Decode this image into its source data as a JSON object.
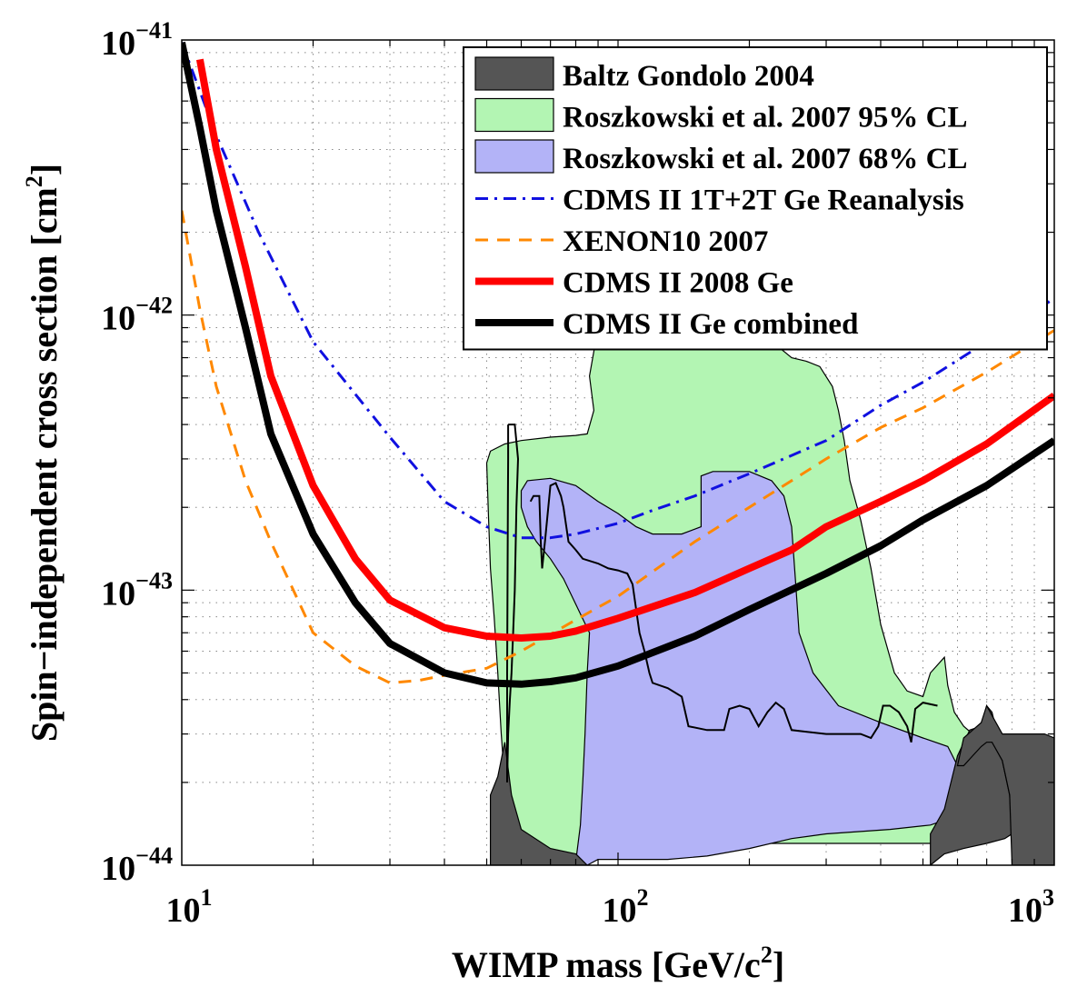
{
  "chart_data": {
    "type": "line",
    "xlabel": "WIMP mass [GeV/c",
    "xlabel_sup": "2",
    "xlabel_end": "]",
    "ylabel": "Spin−independent cross section [cm",
    "ylabel_sup": "2",
    "ylabel_end": "]",
    "xscale": "log",
    "yscale": "log",
    "xlim": [
      10,
      1000
    ],
    "ylim": [
      1e-44,
      1e-41
    ],
    "grid": true,
    "legend_position": "top-right",
    "xticks": [
      {
        "value": 10,
        "base": "10",
        "exp": "1"
      },
      {
        "value": 100,
        "base": "10",
        "exp": "2"
      },
      {
        "value": 1000,
        "base": "10",
        "exp": "3"
      }
    ],
    "yticks": [
      {
        "value": 1e-44,
        "base": "10",
        "exp": "−44"
      },
      {
        "value": 1e-43,
        "base": "10",
        "exp": "−43"
      },
      {
        "value": 1e-42,
        "base": "10",
        "exp": "−42"
      },
      {
        "value": 1e-41,
        "base": "10",
        "exp": "−41"
      }
    ],
    "regions": [
      {
        "name": "Roszkowski et al. 2007 95% CL",
        "color": "#b3f5b3",
        "points": [
          [
            50,
            2.9e-43
          ],
          [
            51,
            3.2e-43
          ],
          [
            55,
            3.4e-43
          ],
          [
            60,
            3.5e-43
          ],
          [
            70,
            3.6e-43
          ],
          [
            80,
            3.65e-43
          ],
          [
            85,
            3.7e-43
          ],
          [
            88,
            4.5e-43
          ],
          [
            86,
            6e-43
          ],
          [
            90,
            9e-43
          ],
          [
            95,
            1.05e-42
          ],
          [
            110,
            1.08e-42
          ],
          [
            120,
            1.05e-42
          ],
          [
            140,
            9.5e-43
          ],
          [
            170,
            8.5e-43
          ],
          [
            200,
            8.2e-43
          ],
          [
            230,
            7.8e-43
          ],
          [
            250,
            7e-43
          ],
          [
            270,
            6.8e-43
          ],
          [
            290,
            6.5e-43
          ],
          [
            310,
            5.5e-43
          ],
          [
            320,
            4.5e-43
          ],
          [
            330,
            3.5e-43
          ],
          [
            340,
            2.5e-43
          ],
          [
            360,
            1.8e-43
          ],
          [
            380,
            1.2e-43
          ],
          [
            400,
            7.5e-44
          ],
          [
            430,
            5e-44
          ],
          [
            460,
            4.3e-44
          ],
          [
            500,
            4.1e-44
          ],
          [
            520,
            5e-44
          ],
          [
            560,
            5.7e-44
          ],
          [
            570,
            4.5e-44
          ],
          [
            590,
            3.6e-44
          ],
          [
            620,
            3.2e-44
          ],
          [
            650,
            3e-44
          ],
          [
            700,
            2.8e-44
          ],
          [
            760,
            2.5e-44
          ],
          [
            780,
            2.1e-44
          ],
          [
            790,
            1.7e-44
          ],
          [
            760,
            1.4e-44
          ],
          [
            700,
            1.25e-44
          ],
          [
            600,
            1.2e-44
          ],
          [
            500,
            1.2e-44
          ],
          [
            400,
            1.2e-44
          ],
          [
            300,
            1.2e-44
          ],
          [
            200,
            1.2e-44
          ],
          [
            150,
            1.2e-44
          ],
          [
            110,
            1.2e-44
          ],
          [
            90,
            1.2e-44
          ],
          [
            82,
            1.05e-44
          ],
          [
            75,
            1e-44
          ],
          [
            60,
            1e-44
          ],
          [
            57,
            1.4e-44
          ],
          [
            55,
            2e-44
          ],
          [
            54,
            3e-44
          ],
          [
            53,
            5e-44
          ],
          [
            52,
            8e-44
          ],
          [
            51,
            1.2e-43
          ],
          [
            50.5,
            1.8e-43
          ]
        ]
      },
      {
        "name": "Roszkowski et al. 2007 68% CL",
        "color": "#b3b3f7",
        "points": [
          [
            60,
            2.3e-43
          ],
          [
            62,
            2.5e-43
          ],
          [
            70,
            2.55e-43
          ],
          [
            80,
            2.4e-43
          ],
          [
            90,
            2.1e-43
          ],
          [
            100,
            1.9e-43
          ],
          [
            110,
            1.7e-43
          ],
          [
            120,
            1.6e-43
          ],
          [
            130,
            1.6e-43
          ],
          [
            140,
            1.6e-43
          ],
          [
            155,
            1.7e-43
          ],
          [
            155,
            2.6e-43
          ],
          [
            165,
            2.7e-43
          ],
          [
            200,
            2.7e-43
          ],
          [
            225,
            2.5e-43
          ],
          [
            240,
            2.2e-43
          ],
          [
            250,
            1.7e-43
          ],
          [
            255,
            1.1e-43
          ],
          [
            260,
            7e-44
          ],
          [
            280,
            5e-44
          ],
          [
            320,
            3.8e-44
          ],
          [
            400,
            3.3e-44
          ],
          [
            500,
            2.9e-44
          ],
          [
            570,
            2.7e-44
          ],
          [
            600,
            2.3e-44
          ],
          [
            610,
            1.8e-44
          ],
          [
            590,
            1.5e-44
          ],
          [
            520,
            1.4e-44
          ],
          [
            420,
            1.35e-44
          ],
          [
            300,
            1.3e-44
          ],
          [
            250,
            1.25e-44
          ],
          [
            200,
            1.15e-44
          ],
          [
            160,
            1.08e-44
          ],
          [
            130,
            1.05e-44
          ],
          [
            100,
            1.05e-44
          ],
          [
            90,
            1.05e-44
          ],
          [
            85,
            1e-44
          ],
          [
            80,
            1.03e-44
          ],
          [
            82,
            1.4e-44
          ],
          [
            83,
            2e-44
          ],
          [
            84,
            3e-44
          ],
          [
            85,
            5e-44
          ],
          [
            86,
            7e-44
          ],
          [
            75,
            1.1e-43
          ],
          [
            70,
            1.3e-43
          ],
          [
            65,
            1.5e-43
          ],
          [
            62,
            1.7e-43
          ],
          [
            60,
            2e-43
          ]
        ]
      },
      {
        "name": "Baltz Gondolo 2004",
        "color": "#555555",
        "points": [
          [
            51,
            1e-44
          ],
          [
            51,
            1.8e-44
          ],
          [
            53,
            2.1e-44
          ],
          [
            55,
            2.8e-44
          ],
          [
            57,
            1.8e-44
          ],
          [
            60,
            1.35e-44
          ],
          [
            70,
            1.15e-44
          ],
          [
            80,
            1.1e-44
          ],
          [
            85,
            1e-44
          ]
        ]
      },
      {
        "name": "Baltz Gondolo 2004",
        "color": "#555555",
        "points": [
          [
            520,
            1e-44
          ],
          [
            520,
            1.3e-44
          ],
          [
            560,
            1.6e-44
          ],
          [
            600,
            2.5e-44
          ],
          [
            640,
            3.1e-44
          ],
          [
            680,
            3.2e-44
          ],
          [
            700,
            3.8e-44
          ],
          [
            720,
            3.6e-44
          ],
          [
            740,
            3e-44
          ],
          [
            760,
            2.4e-44
          ],
          [
            790,
            1.8e-44
          ],
          [
            800,
            1.3e-44
          ],
          [
            770,
            1.25e-44
          ],
          [
            700,
            1.2e-44
          ],
          [
            620,
            1.15e-44
          ],
          [
            560,
            1.1e-44
          ],
          [
            540,
            1.05e-44
          ]
        ]
      },
      {
        "name": "Baltz Gondolo 2004",
        "color": "#555555",
        "points": [
          [
            600,
            2.3e-44
          ],
          [
            620,
            2.9e-44
          ],
          [
            650,
            3.1e-44
          ],
          [
            680,
            3.3e-44
          ],
          [
            700,
            3.8e-44
          ],
          [
            720,
            3.5e-44
          ],
          [
            760,
            3e-44
          ],
          [
            780,
            3e-44
          ],
          [
            850,
            3e-44
          ],
          [
            950,
            3e-44
          ],
          [
            1000,
            2.9e-44
          ],
          [
            1000,
            1e-44
          ],
          [
            800,
            1e-44
          ],
          [
            790,
            1.8e-44
          ],
          [
            760,
            2.4e-44
          ],
          [
            720,
            2.8e-44
          ],
          [
            700,
            2.8e-44
          ],
          [
            680,
            2.7e-44
          ],
          [
            650,
            2.5e-44
          ],
          [
            620,
            2.3e-44
          ]
        ]
      }
    ],
    "region_outlines": [
      {
        "name": "Baltz Gondolo 2004",
        "color": "#000000",
        "points": [
          [
            56,
            4e-43
          ],
          [
            58,
            4e-43
          ],
          [
            59,
            3e-43
          ],
          [
            58.5,
            2e-43
          ],
          [
            58,
            1e-43
          ],
          [
            57.5,
            7e-44
          ],
          [
            57,
            5e-44
          ],
          [
            56.5,
            4e-44
          ],
          [
            56,
            3e-44
          ],
          [
            55.7,
            2e-44
          ],
          [
            55.7,
            5e-44
          ],
          [
            55.8,
            1e-43
          ],
          [
            55.9,
            2e-43
          ],
          [
            56,
            3e-43
          ],
          [
            56,
            4e-43
          ]
        ]
      },
      {
        "name": "Baltz Gondolo 2004",
        "color": "#000000",
        "points": [
          [
            63,
            2.1e-43
          ],
          [
            64,
            2.2e-43
          ],
          [
            66,
            2.2e-43
          ],
          [
            66.5,
            1.5e-43
          ],
          [
            67,
            1.2e-43
          ],
          [
            68,
            1.5e-43
          ],
          [
            70,
            2.4e-43
          ],
          [
            72,
            2.45e-43
          ],
          [
            74,
            2.2e-43
          ],
          [
            75,
            2e-43
          ],
          [
            77,
            1.5e-43
          ],
          [
            80,
            1.4e-43
          ],
          [
            83,
            1.3e-43
          ],
          [
            90,
            1.25e-43
          ],
          [
            95,
            1.2e-43
          ],
          [
            100,
            1.18e-43
          ],
          [
            105,
            1.15e-43
          ],
          [
            108,
            1.05e-43
          ],
          [
            112,
            7e-44
          ],
          [
            115,
            6e-44
          ],
          [
            118,
            5e-44
          ],
          [
            120,
            4.6e-44
          ],
          [
            130,
            4.4e-44
          ],
          [
            140,
            4.1e-44
          ],
          [
            145,
            3.2e-44
          ],
          [
            160,
            3.1e-44
          ],
          [
            175,
            3.1e-44
          ],
          [
            180,
            3.7e-44
          ],
          [
            190,
            3.8e-44
          ],
          [
            200,
            3.7e-44
          ],
          [
            210,
            3.2e-44
          ],
          [
            220,
            3.6e-44
          ],
          [
            230,
            3.9e-44
          ],
          [
            240,
            3.7e-44
          ],
          [
            250,
            3.1e-44
          ],
          [
            300,
            3e-44
          ],
          [
            360,
            3e-44
          ],
          [
            380,
            2.9e-44
          ],
          [
            395,
            3.2e-44
          ],
          [
            405,
            3.8e-44
          ],
          [
            420,
            3.8e-44
          ],
          [
            440,
            3.6e-44
          ],
          [
            460,
            3.2e-44
          ],
          [
            470,
            2.8e-44
          ],
          [
            480,
            3.7e-44
          ],
          [
            500,
            3.9e-44
          ],
          [
            540,
            3.8e-44
          ]
        ]
      }
    ],
    "series": [
      {
        "name": "CDMS II 1T+2T Ge Reanalysis",
        "color": "#1010e0",
        "dash": "dashdot",
        "width": 3,
        "x": [
          10,
          12,
          15,
          20,
          30,
          40,
          50,
          60,
          70,
          80,
          100,
          120,
          150,
          200,
          300,
          400,
          500,
          700,
          1000
        ],
        "y": [
          9.8e-42,
          4.5e-42,
          2e-42,
          8e-43,
          3.6e-43,
          2.1e-43,
          1.7e-43,
          1.55e-43,
          1.55e-43,
          1.6e-43,
          1.75e-43,
          1.95e-43,
          2.2e-43,
          2.65e-43,
          3.5e-43,
          4.7e-43,
          5.7e-43,
          8e-43,
          1.15e-42
        ]
      },
      {
        "name": "XENON10 2007",
        "color": "#ff8800",
        "dash": "dash",
        "width": 3,
        "x": [
          10,
          11,
          12,
          14,
          16,
          20,
          25,
          30,
          35,
          40,
          50,
          60,
          80,
          100,
          150,
          200,
          300,
          400,
          500,
          700,
          1000
        ],
        "y": [
          2.4e-42,
          1.05e-42,
          5.5e-43,
          2.5e-43,
          1.5e-43,
          7e-44,
          5.3e-44,
          4.6e-44,
          4.7e-44,
          4.9e-44,
          5.2e-44,
          6e-44,
          7.8e-44,
          9.5e-44,
          1.5e-43,
          2e-43,
          3e-43,
          3.9e-43,
          4.6e-43,
          6.2e-43,
          8.8e-43
        ]
      },
      {
        "name": "CDMS II 2008 Ge",
        "color": "#ff0000",
        "dash": "solid",
        "width": 8,
        "x": [
          11,
          12,
          14,
          16,
          20,
          25,
          30,
          40,
          50,
          60,
          70,
          80,
          100,
          150,
          200,
          250,
          300,
          400,
          500,
          700,
          1000
        ],
        "y": [
          8.5e-42,
          4e-42,
          1.5e-42,
          6e-43,
          2.4e-43,
          1.3e-43,
          9.2e-44,
          7.3e-44,
          6.8e-44,
          6.7e-44,
          6.8e-44,
          7.1e-44,
          7.9e-44,
          9.8e-44,
          1.2e-43,
          1.4e-43,
          1.7e-43,
          2.1e-43,
          2.5e-43,
          3.4e-43,
          5.1e-43
        ]
      },
      {
        "name": "CDMS II Ge combined",
        "color": "#000000",
        "dash": "solid",
        "width": 8,
        "x": [
          10,
          11,
          12,
          14,
          16,
          20,
          25,
          30,
          40,
          50,
          60,
          70,
          80,
          100,
          150,
          200,
          300,
          400,
          500,
          700,
          1000
        ],
        "y": [
          9.8e-42,
          4.8e-42,
          2.4e-42,
          9e-43,
          3.7e-43,
          1.6e-43,
          9e-44,
          6.4e-44,
          5e-44,
          4.6e-44,
          4.55e-44,
          4.65e-44,
          4.8e-44,
          5.3e-44,
          6.8e-44,
          8.5e-44,
          1.15e-43,
          1.45e-43,
          1.8e-43,
          2.4e-43,
          3.5e-43
        ]
      }
    ],
    "legend": [
      {
        "label": "Baltz Gondolo 2004",
        "kind": "patch",
        "color": "#555555"
      },
      {
        "label": "Roszkowski et al. 2007 95% CL",
        "kind": "patch",
        "color": "#b3f5b3"
      },
      {
        "label": "Roszkowski et al. 2007 68% CL",
        "kind": "patch",
        "color": "#b3b3f7"
      },
      {
        "label": "CDMS II 1T+2T Ge Reanalysis",
        "kind": "line",
        "color": "#1010e0",
        "dash": "dashdot",
        "width": 3
      },
      {
        "label": "XENON10 2007",
        "kind": "line",
        "color": "#ff8800",
        "dash": "dash",
        "width": 3
      },
      {
        "label": "CDMS II 2008 Ge",
        "kind": "line",
        "color": "#ff0000",
        "dash": "solid",
        "width": 8
      },
      {
        "label": "CDMS II Ge combined",
        "kind": "line",
        "color": "#000000",
        "dash": "solid",
        "width": 8
      }
    ]
  }
}
